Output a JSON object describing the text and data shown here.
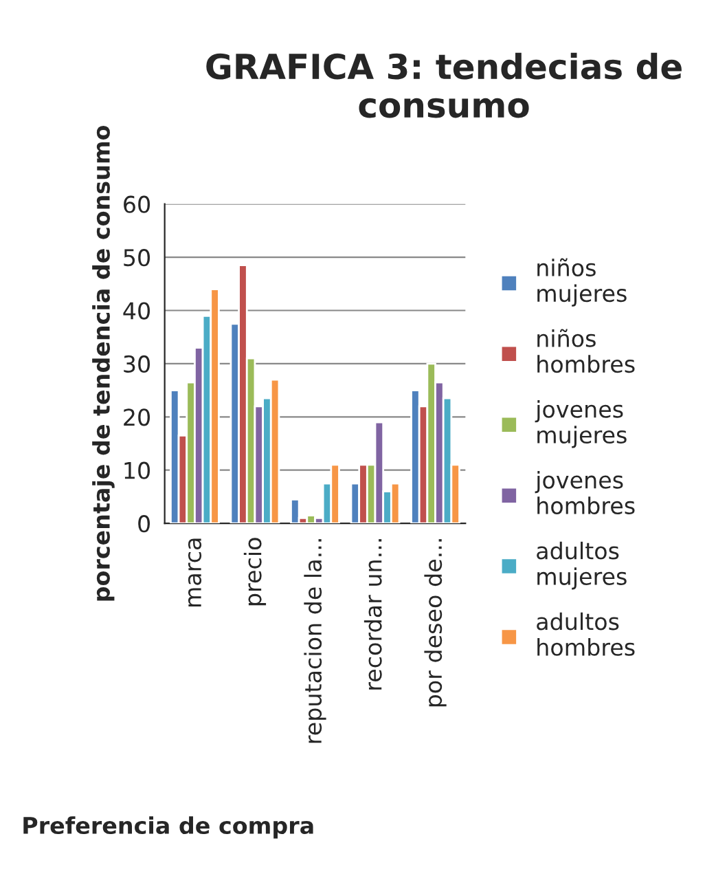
{
  "chart_data": {
    "type": "bar",
    "title": "GRAFICA 3: tendecias de consumo",
    "xlabel": "Preferencia de compra",
    "ylabel": "porcentaje de tendencia de consumo",
    "categories": [
      "marca",
      "precio",
      "reputacion de la...",
      "recordar un...",
      "por deseo de..."
    ],
    "series": [
      {
        "name": "niños mujeres",
        "color": "#4f81bd",
        "values": [
          25,
          37.5,
          4.5,
          7.5,
          25
        ]
      },
      {
        "name": "niños hombres",
        "color": "#c0504d",
        "values": [
          16.5,
          48.5,
          1,
          11,
          22
        ]
      },
      {
        "name": "jovenes mujeres",
        "color": "#9bbb59",
        "values": [
          26.5,
          31,
          1.5,
          11,
          30
        ]
      },
      {
        "name": "jovenes hombres",
        "color": "#8064a2",
        "values": [
          33,
          22,
          1,
          19,
          26.5
        ]
      },
      {
        "name": "adultos mujeres",
        "color": "#4bacc6",
        "values": [
          39,
          23.5,
          7.5,
          6,
          23.5
        ]
      },
      {
        "name": "adultos hombres",
        "color": "#f79646",
        "values": [
          44,
          27,
          11,
          7.5,
          11
        ]
      }
    ],
    "ylim": [
      0,
      60
    ],
    "yticks": [
      0,
      10,
      20,
      30,
      40,
      50,
      60
    ],
    "grid": "y",
    "legend": "right"
  }
}
